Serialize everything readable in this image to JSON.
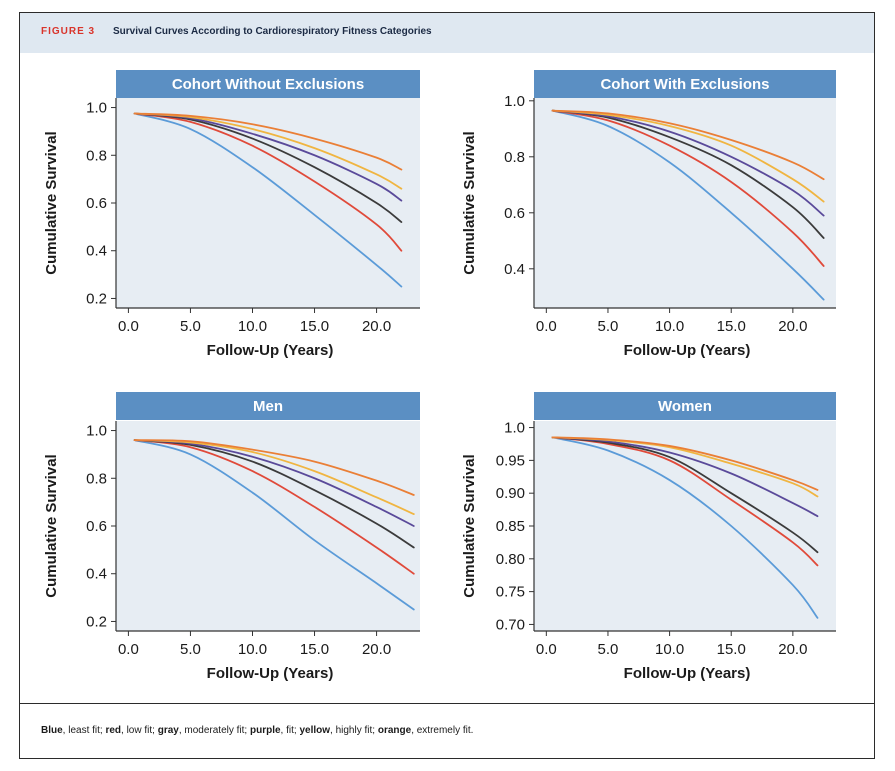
{
  "figure": {
    "label": "FIGURE 3",
    "title": "Survival Curves According to Cardiorespiratory Fitness Categories",
    "caption": [
      {
        "text": "Blue",
        "bold": true
      },
      {
        "text": ", least fit; ",
        "bold": false
      },
      {
        "text": "red",
        "bold": true
      },
      {
        "text": ", low fit; ",
        "bold": false
      },
      {
        "text": "gray",
        "bold": true
      },
      {
        "text": ", moderately fit; ",
        "bold": false
      },
      {
        "text": "purple",
        "bold": true
      },
      {
        "text": ", fit; ",
        "bold": false
      },
      {
        "text": "yellow",
        "bold": true
      },
      {
        "text": ", highly fit; ",
        "bold": false
      },
      {
        "text": "orange",
        "bold": true
      },
      {
        "text": ", extremely fit.",
        "bold": false
      }
    ]
  },
  "colors": {
    "header_bg": "#dfe8f1",
    "panel_title_bg": "#5b8fc3",
    "plot_bg": "#e7edf3",
    "least_fit": "#5b9bd8",
    "low_fit": "#e04a3a",
    "moderately_fit": "#3b3b3b",
    "fit": "#5a4a9a",
    "highly_fit": "#f0b541",
    "extremely_fit": "#ea7f36"
  },
  "chart_data": [
    {
      "type": "line",
      "title": "Cohort Without Exclusions",
      "xlabel": "Follow-Up (Years)",
      "ylabel": "Cumulative Survival",
      "xlim": [
        -1,
        23.5
      ],
      "ylim": [
        0.16,
        1.04
      ],
      "xticks": [
        "0.0",
        "5.0",
        "10.0",
        "15.0",
        "20.0"
      ],
      "yticks": [
        "0.2",
        "0.4",
        "0.6",
        "0.8",
        "1.0"
      ],
      "x": [
        0.5,
        5,
        10,
        15,
        20,
        22
      ],
      "series": [
        {
          "color": "least_fit",
          "values": [
            0.975,
            0.91,
            0.75,
            0.55,
            0.34,
            0.25
          ]
        },
        {
          "color": "low_fit",
          "values": [
            0.975,
            0.94,
            0.84,
            0.69,
            0.51,
            0.4
          ]
        },
        {
          "color": "moderately_fit",
          "values": [
            0.975,
            0.95,
            0.87,
            0.75,
            0.6,
            0.52
          ]
        },
        {
          "color": "fit",
          "values": [
            0.975,
            0.955,
            0.89,
            0.8,
            0.68,
            0.61
          ]
        },
        {
          "color": "highly_fit",
          "values": [
            0.975,
            0.96,
            0.91,
            0.83,
            0.72,
            0.66
          ]
        },
        {
          "color": "extremely_fit",
          "values": [
            0.975,
            0.965,
            0.93,
            0.87,
            0.79,
            0.74
          ]
        }
      ]
    },
    {
      "type": "line",
      "title": "Cohort With Exclusions",
      "xlabel": "Follow-Up (Years)",
      "ylabel": "Cumulative Survival",
      "xlim": [
        -1,
        23.5
      ],
      "ylim": [
        0.26,
        1.01
      ],
      "xticks": [
        "0.0",
        "5.0",
        "10.0",
        "15.0",
        "20.0"
      ],
      "yticks": [
        "0.4",
        "0.6",
        "0.8",
        "1.0"
      ],
      "x": [
        0.5,
        5,
        10,
        15,
        20,
        22.5
      ],
      "series": [
        {
          "color": "least_fit",
          "values": [
            0.965,
            0.91,
            0.78,
            0.6,
            0.4,
            0.29
          ]
        },
        {
          "color": "low_fit",
          "values": [
            0.965,
            0.93,
            0.84,
            0.71,
            0.53,
            0.41
          ]
        },
        {
          "color": "moderately_fit",
          "values": [
            0.965,
            0.94,
            0.87,
            0.77,
            0.62,
            0.51
          ]
        },
        {
          "color": "fit",
          "values": [
            0.965,
            0.945,
            0.89,
            0.8,
            0.68,
            0.59
          ]
        },
        {
          "color": "highly_fit",
          "values": [
            0.965,
            0.95,
            0.91,
            0.84,
            0.72,
            0.64
          ]
        },
        {
          "color": "extremely_fit",
          "values": [
            0.965,
            0.955,
            0.92,
            0.86,
            0.78,
            0.72
          ]
        }
      ]
    },
    {
      "type": "line",
      "title": "Men",
      "xlabel": "Follow-Up (Years)",
      "ylabel": "Cumulative Survival",
      "xlim": [
        -1,
        23.5
      ],
      "ylim": [
        0.16,
        1.04
      ],
      "xticks": [
        "0.0",
        "5.0",
        "10.0",
        "15.0",
        "20.0"
      ],
      "yticks": [
        "0.2",
        "0.4",
        "0.6",
        "0.8",
        "1.0"
      ],
      "x": [
        0.5,
        5,
        10,
        15,
        20,
        23
      ],
      "series": [
        {
          "color": "least_fit",
          "values": [
            0.96,
            0.9,
            0.74,
            0.54,
            0.36,
            0.25
          ]
        },
        {
          "color": "low_fit",
          "values": [
            0.96,
            0.93,
            0.83,
            0.68,
            0.51,
            0.4
          ]
        },
        {
          "color": "moderately_fit",
          "values": [
            0.96,
            0.94,
            0.87,
            0.75,
            0.61,
            0.51
          ]
        },
        {
          "color": "fit",
          "values": [
            0.96,
            0.945,
            0.89,
            0.8,
            0.68,
            0.6
          ]
        },
        {
          "color": "highly_fit",
          "values": [
            0.96,
            0.95,
            0.91,
            0.83,
            0.72,
            0.65
          ]
        },
        {
          "color": "extremely_fit",
          "values": [
            0.96,
            0.955,
            0.92,
            0.87,
            0.79,
            0.73
          ]
        }
      ]
    },
    {
      "type": "line",
      "title": "Women",
      "xlabel": "Follow-Up (Years)",
      "ylabel": "Cumulative Survival",
      "xlim": [
        -1,
        23.5
      ],
      "ylim": [
        0.69,
        1.01
      ],
      "xticks": [
        "0.0",
        "5.0",
        "10.0",
        "15.0",
        "20.0"
      ],
      "yticks": [
        "0.70",
        "0.75",
        "0.80",
        "0.85",
        "0.90",
        "0.95",
        "1.0"
      ],
      "x": [
        0.5,
        5,
        10,
        15,
        20,
        22
      ],
      "series": [
        {
          "color": "least_fit",
          "values": [
            0.985,
            0.965,
            0.92,
            0.85,
            0.76,
            0.71
          ]
        },
        {
          "color": "low_fit",
          "values": [
            0.985,
            0.975,
            0.95,
            0.89,
            0.825,
            0.79
          ]
        },
        {
          "color": "moderately_fit",
          "values": [
            0.985,
            0.977,
            0.955,
            0.9,
            0.84,
            0.81
          ]
        },
        {
          "color": "fit",
          "values": [
            0.985,
            0.979,
            0.962,
            0.93,
            0.885,
            0.865
          ]
        },
        {
          "color": "highly_fit",
          "values": [
            0.985,
            0.981,
            0.97,
            0.945,
            0.915,
            0.895
          ]
        },
        {
          "color": "extremely_fit",
          "values": [
            0.985,
            0.982,
            0.972,
            0.95,
            0.92,
            0.905
          ]
        }
      ]
    }
  ]
}
